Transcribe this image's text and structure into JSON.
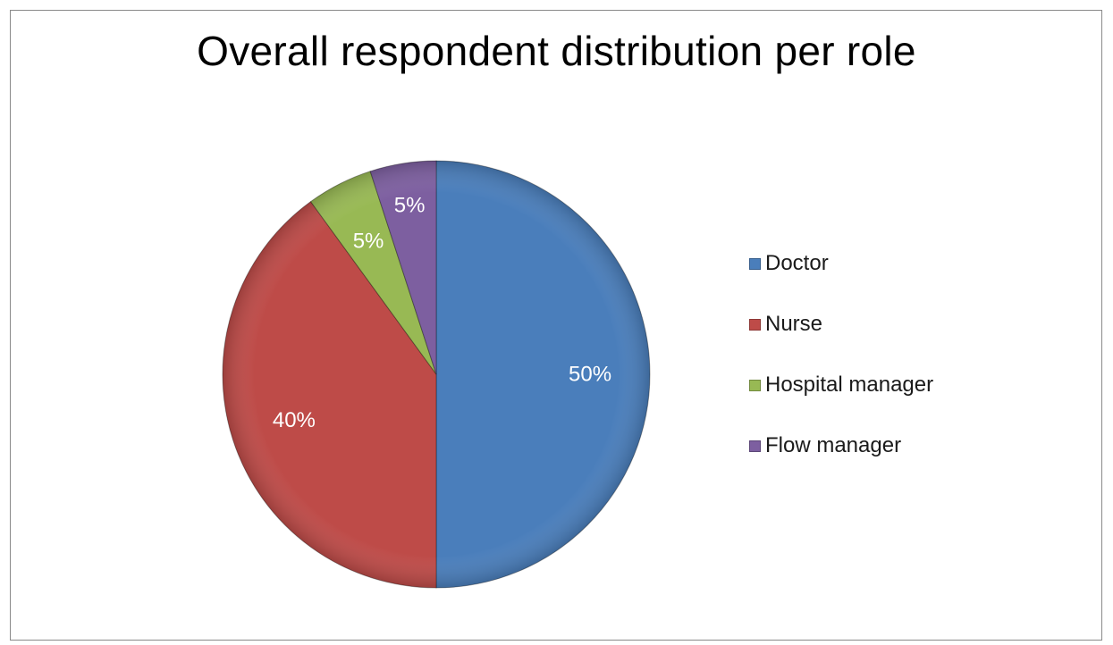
{
  "chart_data": {
    "type": "pie",
    "title": "Overall respondent distribution per role",
    "categories": [
      "Doctor",
      "Nurse",
      "Hospital manager",
      "Flow manager"
    ],
    "values": [
      50,
      40,
      5,
      5
    ],
    "labels": [
      "50%",
      "40%",
      "5%",
      "5%"
    ],
    "colors": [
      "#4a7ebb",
      "#be4b48",
      "#98b954",
      "#7d5fa0"
    ],
    "legend_position": "right"
  }
}
